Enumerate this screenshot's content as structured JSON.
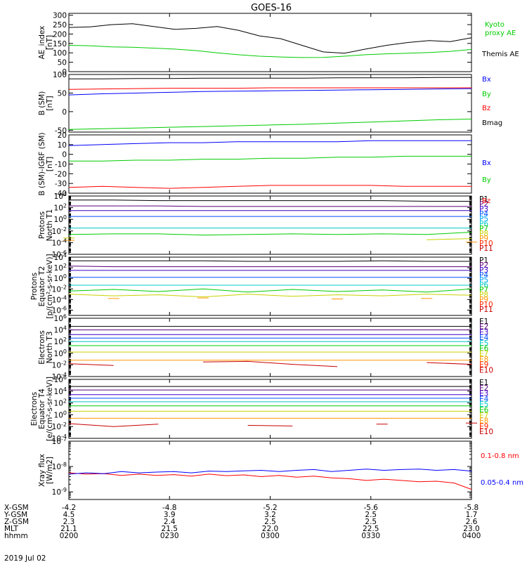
{
  "title": "GOES-16",
  "footer_date": "2019 Jul 02",
  "time_axis": {
    "x_ticks": [
      "0200",
      "0230",
      "0300",
      "0330",
      "0400"
    ],
    "row_labels": [
      "X-GSM",
      "Y-GSM",
      "Z-GSM",
      "MLT",
      "hhmm"
    ],
    "rows": [
      [
        "-4.2",
        "-4.8",
        "-5.2",
        "-5.6",
        "-5.8"
      ],
      [
        "4.5",
        "3.9",
        "3.2",
        "2.5",
        "1.7"
      ],
      [
        "2.3",
        "2.4",
        "2.5",
        "2.5",
        "2.6"
      ],
      [
        "21.1",
        "21.5",
        "22.0",
        "22.5",
        "23.0"
      ],
      [
        "0200",
        "0230",
        "0300",
        "0330",
        "0400"
      ]
    ]
  },
  "chart_data": [
    {
      "type": "line",
      "ylabel": [
        "AE_index",
        "[nT]"
      ],
      "yticks": [
        "300",
        "250",
        "200",
        "150",
        "100",
        "50",
        "0"
      ],
      "ylim": [
        0,
        310
      ],
      "x_range": [
        "02:00",
        "04:00"
      ],
      "series": [
        {
          "name": "Kyoto proxy AE",
          "color": "#00cc00",
          "values": [
            140,
            138,
            132,
            130,
            125,
            120,
            112,
            100,
            90,
            82,
            78,
            75,
            76,
            82,
            90,
            95,
            98,
            102,
            108,
            118
          ]
        },
        {
          "name": "Themis AE",
          "color": "#000000",
          "values": [
            235,
            238,
            250,
            255,
            240,
            225,
            230,
            240,
            220,
            190,
            175,
            140,
            105,
            98,
            120,
            140,
            155,
            165,
            160,
            180
          ]
        }
      ]
    },
    {
      "type": "line",
      "ylabel": [
        "B (SM)",
        "[nT]"
      ],
      "yticks": [
        "100",
        "50",
        "0",
        "-50"
      ],
      "ylim": [
        -55,
        100
      ],
      "series": [
        {
          "name": "Bx",
          "color": "#0000ff",
          "values": [
            45,
            48,
            50,
            52,
            54,
            55,
            56,
            57,
            58,
            59,
            60,
            61,
            62
          ]
        },
        {
          "name": "By",
          "color": "#00cc00",
          "values": [
            -48,
            -46,
            -44,
            -42,
            -40,
            -38,
            -36,
            -34,
            -31,
            -28,
            -25,
            -22,
            -20
          ]
        },
        {
          "name": "Bz",
          "color": "#ff0000",
          "values": [
            60,
            61,
            62,
            63,
            63,
            63,
            64,
            64,
            64,
            64,
            64,
            64,
            64
          ]
        },
        {
          "name": "Bmag",
          "color": "#000000",
          "values": [
            88,
            88,
            89,
            89,
            90,
            90,
            90,
            90,
            91,
            91,
            91,
            92,
            92
          ]
        }
      ]
    },
    {
      "type": "line",
      "ylabel": [
        "B (SM)-IGRF (SM)",
        "[nT]"
      ],
      "yticks": [
        "20",
        "10",
        "0",
        "-10",
        "-20",
        "-30",
        "-40"
      ],
      "ylim": [
        -40,
        20
      ],
      "series": [
        {
          "name": "Bx",
          "color": "#0000ff",
          "values": [
            9,
            10,
            11,
            12,
            12,
            13,
            13,
            13,
            13,
            14,
            14,
            14,
            14
          ]
        },
        {
          "name": "By",
          "color": "#00cc00",
          "values": [
            -7,
            -7,
            -6,
            -6,
            -5,
            -5,
            -4,
            -4,
            -3,
            -3,
            -2,
            -2,
            -2
          ]
        },
        {
          "name": "Bz",
          "color": "#ff0000",
          "values": [
            -34,
            -33,
            -34,
            -35,
            -34,
            -33,
            -32,
            -32,
            -32,
            -32,
            -33,
            -33,
            -33
          ]
        }
      ]
    },
    {
      "type": "line",
      "ylabel": [
        "Protons",
        "North T1"
      ],
      "yscale": "log",
      "yticks": [
        "10^4",
        "10^2",
        "10^0",
        "10^-2",
        "10^-4",
        "10^-6"
      ],
      "ylim": [
        -6,
        4
      ],
      "legend": [
        "P1",
        "P2",
        "P3",
        "P4",
        "P5",
        "P6",
        "P7",
        "P8",
        "P9",
        "P10",
        "P11"
      ],
      "legend_colors": [
        "#000000",
        "#5a0078",
        "#3c00c8",
        "#0050ff",
        "#00a0ff",
        "#00c8c8",
        "#00cc00",
        "#c8d200",
        "#ff9600",
        "#ff2800",
        "#c80000"
      ],
      "series": [
        {
          "name": "P1",
          "color": "#000000",
          "log10_values": [
            3.3,
            3.3,
            3.2,
            3.2,
            3.2,
            3.2,
            3.2,
            3.2,
            3.1,
            3.1
          ]
        },
        {
          "name": "P2",
          "color": "#5a0078",
          "log10_values": [
            2.3,
            2.3,
            2.3,
            2.2,
            2.2,
            2.2,
            2.2,
            2.2,
            2.2,
            2.2
          ]
        },
        {
          "name": "P3",
          "color": "#3c00c8",
          "log10_values": [
            1.5,
            1.5,
            1.5,
            1.5,
            1.5,
            1.5,
            1.5,
            1.5,
            1.5,
            1.5
          ]
        },
        {
          "name": "P4",
          "color": "#0050ff",
          "log10_values": [
            0.5,
            0.5,
            0.5,
            0.5,
            0.5,
            0.5,
            0.5,
            0.5,
            0.5,
            0.5
          ]
        },
        {
          "name": "P5",
          "color": "#00c8c8",
          "log10_values": [
            -1.5,
            -1.5,
            -1.5,
            -1.5,
            -1.5,
            -1.5,
            -1.5,
            -1.5,
            -1.5,
            -1.5
          ]
        },
        {
          "name": "P6",
          "color": "#00cc00",
          "log10_values": [
            -2.6,
            -2.5,
            -2.5,
            -2.7,
            -2.6,
            -2.5,
            -2.6,
            -2.5,
            -2.6,
            -2.2
          ]
        },
        {
          "name": "P7",
          "color": "#c8d200",
          "log10_values": [
            -3.2,
            null,
            null,
            null,
            null,
            null,
            null,
            null,
            -3.5,
            -3.3
          ]
        },
        {
          "name": "P8",
          "color": "#ff9600",
          "log10_values": [
            -3.6,
            null,
            null,
            null,
            null,
            null,
            null,
            null,
            null,
            -3.9
          ]
        }
      ]
    },
    {
      "type": "line",
      "ylabel": [
        "Protons",
        "Equator T2",
        "[p/(cm²-s-sr-keV)]"
      ],
      "yscale": "log",
      "yticks": [
        "10^4",
        "10^2",
        "10^0",
        "10^-2",
        "10^-4",
        "10^-6"
      ],
      "ylim": [
        -7,
        4
      ],
      "legend": [
        "P1",
        "P2",
        "P3",
        "P4",
        "P5",
        "P6",
        "P7",
        "P8",
        "P9",
        "P10",
        "P11"
      ],
      "legend_colors": [
        "#000000",
        "#5a0078",
        "#3c00c8",
        "#0050ff",
        "#00a0ff",
        "#00c8c8",
        "#00cc00",
        "#c8d200",
        "#ff9600",
        "#ff2800",
        "#c80000"
      ],
      "series": [
        {
          "name": "P1",
          "color": "#000000",
          "log10_values": [
            3.3,
            3.3,
            3.3,
            3.3,
            3.2,
            3.2,
            3.2,
            3.3,
            3.2,
            3.2
          ]
        },
        {
          "name": "P2",
          "color": "#5a0078",
          "log10_values": [
            2.3,
            2.2,
            2.2,
            2.2,
            2.2,
            2.2,
            2.2,
            2.2,
            2.2,
            2.2
          ]
        },
        {
          "name": "P3",
          "color": "#3c00c8",
          "log10_values": [
            1.5,
            1.5,
            1.5,
            1.5,
            1.5,
            1.5,
            1.5,
            1.5,
            1.5,
            1.5
          ]
        },
        {
          "name": "P4",
          "color": "#0050ff",
          "log10_values": [
            0.2,
            0.2,
            0.2,
            0.2,
            0.2,
            0.2,
            0.2,
            0.2,
            0.2,
            0.2
          ]
        },
        {
          "name": "P5",
          "color": "#00c8c8",
          "log10_values": [
            -1.3,
            -1.3,
            -1.3,
            -1.3,
            -1.3,
            -1.3,
            -1.3,
            -1.3,
            -1.3,
            -1.3
          ]
        },
        {
          "name": "P6",
          "color": "#00cc00",
          "log10_values": [
            -2.4,
            -2.1,
            -2.5,
            -2.0,
            -2.6,
            -2.1,
            -2.5,
            -2.2,
            -2.6,
            -2.0
          ]
        },
        {
          "name": "P7",
          "color": "#c8d200",
          "log10_values": [
            -3.0,
            -3.3,
            -3.1,
            -3.5,
            -3.0,
            -3.4,
            -3.1,
            -3.3,
            -3.0,
            -3.2
          ]
        },
        {
          "name": "P8",
          "color": "#ff9600",
          "log10_values": [
            null,
            -3.8,
            null,
            -3.7,
            null,
            null,
            -3.9,
            null,
            -3.8,
            null
          ]
        }
      ]
    },
    {
      "type": "line",
      "ylabel": [
        "Electrons",
        "North T3"
      ],
      "yscale": "log",
      "yticks": [
        "10^6",
        "10^4",
        "10^2",
        "10^0",
        "10^-2",
        "10^-4"
      ],
      "ylim": [
        -4,
        6
      ],
      "legend": [
        "E1",
        "E2",
        "E3",
        "E4",
        "E5",
        "E6",
        "E7",
        "E8",
        "E9",
        "E10"
      ],
      "legend_colors": [
        "#000000",
        "#5a0078",
        "#3c00c8",
        "#0050ff",
        "#00c8c8",
        "#00cc00",
        "#c8d200",
        "#ff9600",
        "#ff2800",
        "#c80000"
      ],
      "series": [
        {
          "name": "E1",
          "color": "#000000",
          "log10_values": [
            4.6,
            4.6,
            4.6,
            4.6,
            4.6,
            4.6,
            4.6,
            4.6,
            4.6,
            4.6
          ]
        },
        {
          "name": "E2",
          "color": "#5a0078",
          "log10_values": [
            4.0,
            4.0,
            4.0,
            4.0,
            4.0,
            4.0,
            4.0,
            4.0,
            4.0,
            4.0
          ]
        },
        {
          "name": "E3",
          "color": "#3c00c8",
          "log10_values": [
            3.2,
            3.2,
            3.2,
            3.2,
            3.2,
            3.2,
            3.2,
            3.2,
            3.2,
            3.2
          ]
        },
        {
          "name": "E4",
          "color": "#0050ff",
          "log10_values": [
            2.6,
            2.6,
            2.6,
            2.6,
            2.6,
            2.6,
            2.6,
            2.6,
            2.6,
            2.6
          ]
        },
        {
          "name": "E5",
          "color": "#00c8c8",
          "log10_values": [
            2.0,
            2.0,
            2.0,
            2.0,
            2.0,
            2.0,
            2.0,
            2.0,
            2.0,
            2.0
          ]
        },
        {
          "name": "E6",
          "color": "#00cc00",
          "log10_values": [
            1.3,
            1.3,
            1.3,
            1.3,
            1.3,
            1.3,
            1.3,
            1.3,
            1.3,
            1.3
          ]
        },
        {
          "name": "E7",
          "color": "#c8d200",
          "log10_values": [
            0.2,
            0.2,
            0.2,
            0.2,
            0.2,
            0.2,
            0.2,
            0.2,
            0.2,
            0.2
          ]
        },
        {
          "name": "E8",
          "color": "#ff9600",
          "log10_values": [
            -1.2,
            -1.2,
            -1.2,
            -1.2,
            -1.2,
            -1.2,
            -1.2,
            -1.2,
            -1.2,
            -1.2
          ]
        },
        {
          "name": "E9",
          "color": "#c80000",
          "log10_values": [
            -1.8,
            -2.1,
            null,
            -1.5,
            -1.4,
            -1.9,
            -2.3,
            null,
            -1.6,
            -1.9
          ]
        }
      ]
    },
    {
      "type": "line",
      "ylabel": [
        "Electrons",
        "Equator T4",
        "[e/(cm²-s-sr-keV)]"
      ],
      "yscale": "log",
      "yticks": [
        "10^6",
        "10^4",
        "10^2",
        "10^0",
        "10^-2",
        "10^-4"
      ],
      "ylim": [
        -4,
        6
      ],
      "legend": [
        "E1",
        "E2",
        "E3",
        "E4",
        "E5",
        "E6",
        "E7",
        "E8",
        "E9",
        "E10"
      ],
      "legend_colors": [
        "#000000",
        "#5a0078",
        "#3c00c8",
        "#0050ff",
        "#00c8c8",
        "#00cc00",
        "#c8d200",
        "#ff9600",
        "#ff2800",
        "#c80000"
      ],
      "series": [
        {
          "name": "E1",
          "color": "#000000",
          "log10_values": [
            4.8,
            4.8,
            4.8,
            4.8,
            4.8,
            4.8,
            4.8,
            4.8,
            4.8,
            4.8
          ]
        },
        {
          "name": "E2",
          "color": "#5a0078",
          "log10_values": [
            4.2,
            4.2,
            4.2,
            4.2,
            4.2,
            4.2,
            4.2,
            4.2,
            4.2,
            4.2
          ]
        },
        {
          "name": "E3",
          "color": "#3c00c8",
          "log10_values": [
            3.4,
            3.4,
            3.4,
            3.4,
            3.4,
            3.4,
            3.4,
            3.4,
            3.4,
            3.4
          ]
        },
        {
          "name": "E4",
          "color": "#0050ff",
          "log10_values": [
            2.8,
            2.8,
            2.8,
            2.8,
            2.8,
            2.8,
            2.8,
            2.8,
            2.8,
            2.8
          ]
        },
        {
          "name": "E5",
          "color": "#00c8c8",
          "log10_values": [
            2.2,
            2.2,
            2.2,
            2.2,
            2.2,
            2.2,
            2.2,
            2.2,
            2.2,
            2.2
          ]
        },
        {
          "name": "E6",
          "color": "#00cc00",
          "log10_values": [
            1.5,
            1.5,
            1.5,
            1.5,
            1.5,
            1.5,
            1.5,
            1.5,
            1.5,
            1.5
          ]
        },
        {
          "name": "E7",
          "color": "#c8d200",
          "log10_values": [
            0.6,
            0.6,
            0.6,
            0.6,
            0.6,
            0.6,
            0.6,
            0.6,
            0.6,
            0.6
          ]
        },
        {
          "name": "E8",
          "color": "#ff9600",
          "log10_values": [
            -0.6,
            -0.6,
            -0.6,
            -0.6,
            -0.6,
            -0.6,
            -0.6,
            -0.6,
            -0.6,
            -0.6
          ]
        },
        {
          "name": "E9",
          "color": "#c80000",
          "log10_values": [
            -1.5,
            -2.0,
            -1.6,
            null,
            -1.8,
            -1.9,
            null,
            -1.6,
            null,
            -1.4
          ]
        }
      ]
    },
    {
      "type": "line",
      "ylabel": [
        "Xray flux",
        "[W/m2]"
      ],
      "yscale": "log",
      "yticks": [
        "10^-7",
        "10^-8",
        "10^-9"
      ],
      "ylim": [
        -9.3,
        -7
      ],
      "legend": [
        "0.1-0.8 nm",
        "0.05-0.4 nm"
      ],
      "series": [
        {
          "name": "0.1-0.8 nm",
          "color": "#ff0000",
          "log10_values": [
            -8.25,
            -8.3,
            -8.28,
            -8.35,
            -8.3,
            -8.35,
            -8.32,
            -8.38,
            -8.3,
            -8.36,
            -8.33,
            -8.4,
            -8.35,
            -8.42,
            -8.38,
            -8.45,
            -8.48,
            -8.55,
            -8.5,
            -8.55,
            -8.6,
            -8.58,
            -8.65,
            -8.9
          ]
        },
        {
          "name": "0.05-0.4 nm",
          "color": "#0000ff",
          "log10_values": [
            -8.3,
            -8.25,
            -8.28,
            -8.2,
            -8.25,
            -8.22,
            -8.2,
            -8.25,
            -8.18,
            -8.2,
            -8.17,
            -8.15,
            -8.2,
            -8.15,
            -8.12,
            -8.2,
            -8.15,
            -8.1,
            -8.15,
            -8.12,
            -8.1,
            -8.15,
            -8.12,
            -8.18
          ]
        }
      ]
    }
  ],
  "right_legends": [
    {
      "labels": [
        "Kyoto",
        "proxy AE"
      ],
      "color": "#00cc00"
    },
    {
      "labels": [
        "Themis AE"
      ],
      "color": "#000000"
    },
    {
      "labels": [
        "Bx"
      ],
      "color": "#0000ff"
    },
    {
      "labels": [
        "By"
      ],
      "color": "#00cc00"
    },
    {
      "labels": [
        "Bz"
      ],
      "color": "#ff0000"
    },
    {
      "labels": [
        "Bmag"
      ],
      "color": "#000000"
    },
    {
      "labels": [
        "Bx"
      ],
      "color": "#0000ff"
    },
    {
      "labels": [
        "By"
      ],
      "color": "#00cc00"
    },
    {
      "labels": [
        "Bz"
      ],
      "color": "#ff0000"
    }
  ]
}
